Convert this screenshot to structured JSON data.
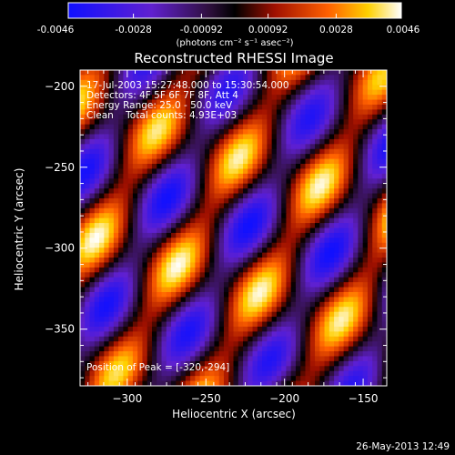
{
  "colorbar": {
    "min_label": "-0.0046",
    "tick_labels": [
      "-0.0046",
      "-0.0028",
      "-0.00092",
      "0.00092",
      "0.0028",
      "0.0046"
    ],
    "units_label": "(photons cm⁻² s⁻¹ asec⁻²)",
    "range": [
      -0.0046,
      0.0046
    ]
  },
  "chart_data": {
    "type": "heatmap",
    "title": "Reconstructed RHESSI Image",
    "xlabel": "Heliocentric X (arcsec)",
    "ylabel": "Heliocentric Y (arcsec)",
    "xlim": [
      -330,
      -135
    ],
    "ylim": [
      -385,
      -190
    ],
    "x_ticks": [
      -300,
      -250,
      -200,
      -150
    ],
    "x_tick_labels": [
      "−300",
      "−250",
      "−200",
      "−150"
    ],
    "y_ticks": [
      -200,
      -250,
      -300,
      -350
    ],
    "y_tick_labels": [
      "−200",
      "−250",
      "−300",
      "−350"
    ],
    "value_range": [
      -0.0046,
      0.0046
    ],
    "peak": {
      "x": -320,
      "y": -294
    },
    "annotations": {
      "time": "17-Jul-2003 15:27:48.000 to 15:30:54.000",
      "detectors": "Detectors: 4F 5F 6F 7F 8F, Att 4",
      "energy": "Energy Range: 25.0 - 50.0 keV",
      "clean": "Clean    Total counts: 4.93E+03",
      "peak_label": "Position of Peak = [-320,-294]"
    }
  },
  "footer": {
    "timestamp": "26-May-2013 12:49"
  }
}
